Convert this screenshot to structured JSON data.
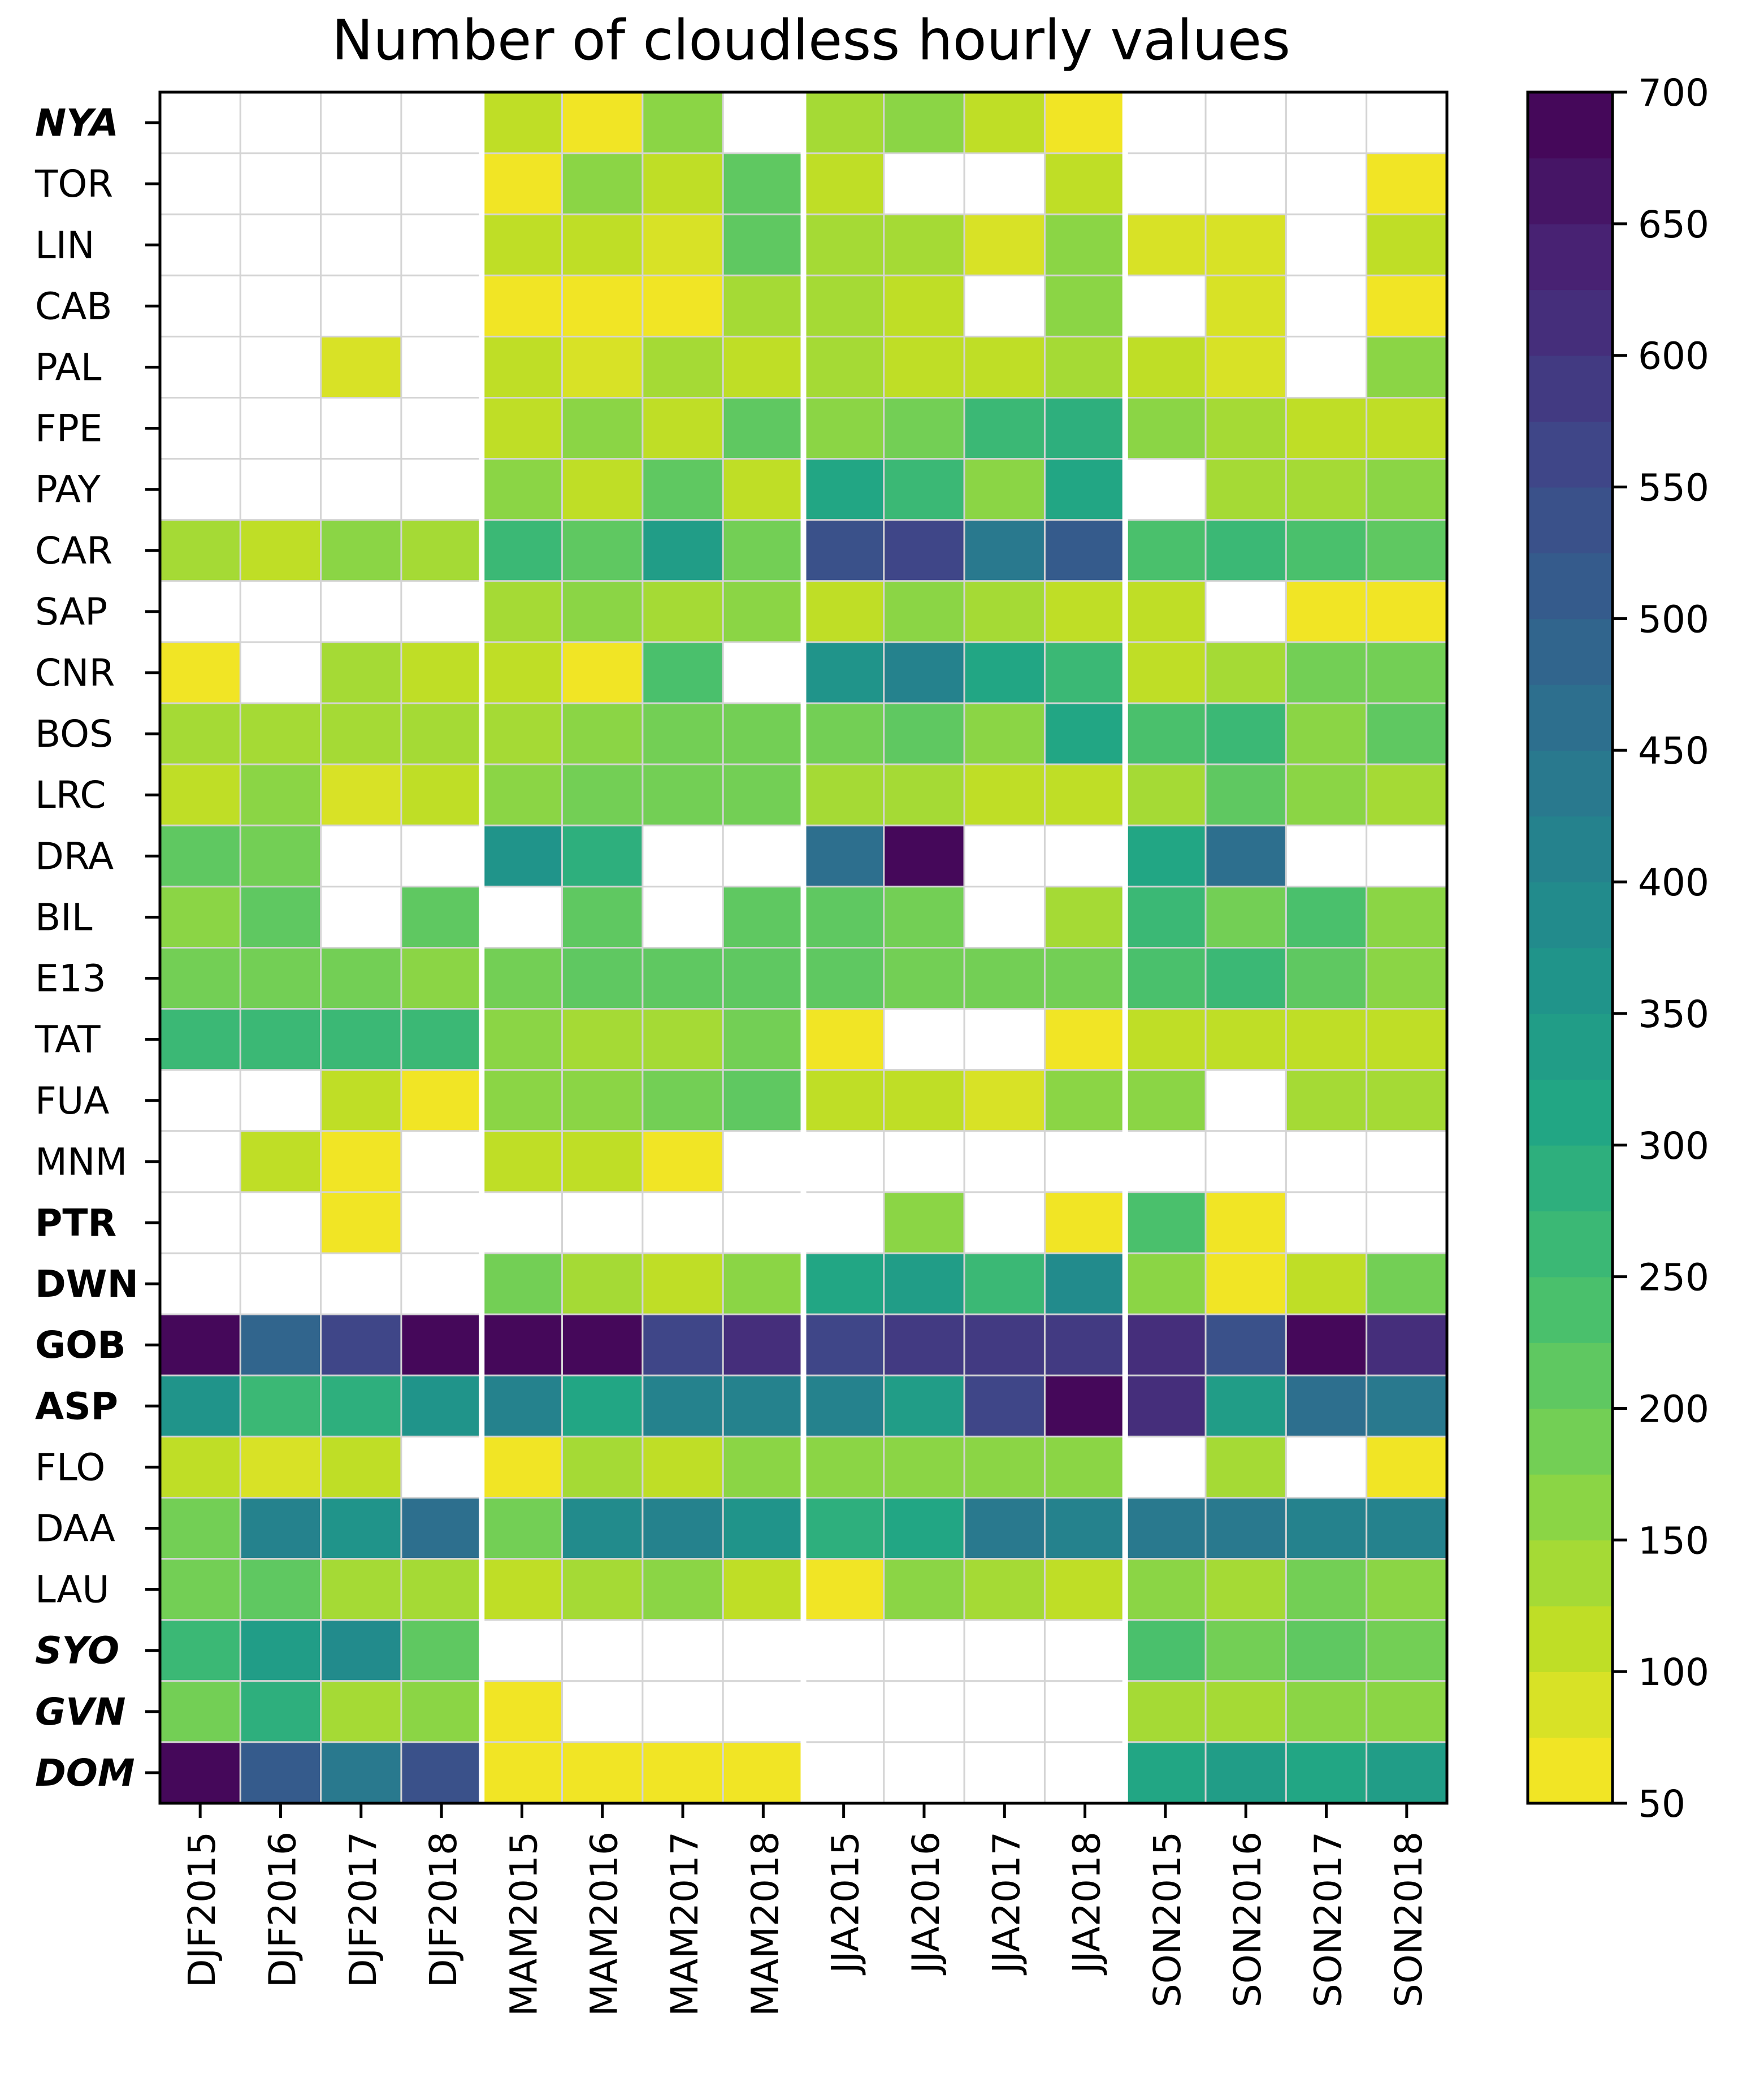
{
  "chart_data": {
    "type": "heatmap",
    "title": "Number of cloudless hourly values",
    "xlabel": "",
    "ylabel": "",
    "x_categories": [
      "DJF2015",
      "DJF2016",
      "DJF2017",
      "DJF2018",
      "MAM2015",
      "MAM2016",
      "MAM2017",
      "MAM2018",
      "JJA2015",
      "JJA2016",
      "JJA2017",
      "JJA2018",
      "SON2015",
      "SON2016",
      "SON2017",
      "SON2018"
    ],
    "y_categories": [
      {
        "label": "NYA",
        "style": "italic-bold",
        "color": "#2a9d8a"
      },
      {
        "label": "TOR",
        "style": "normal",
        "color": "#000000"
      },
      {
        "label": "LIN",
        "style": "normal",
        "color": "#000000"
      },
      {
        "label": "CAB",
        "style": "normal",
        "color": "#000000"
      },
      {
        "label": "PAL",
        "style": "normal",
        "color": "#000000"
      },
      {
        "label": "FPE",
        "style": "normal",
        "color": "#000000"
      },
      {
        "label": "PAY",
        "style": "normal",
        "color": "#000000"
      },
      {
        "label": "CAR",
        "style": "normal",
        "color": "#000000"
      },
      {
        "label": "SAP",
        "style": "normal",
        "color": "#000000"
      },
      {
        "label": "CNR",
        "style": "normal",
        "color": "#000000"
      },
      {
        "label": "BOS",
        "style": "normal",
        "color": "#000000"
      },
      {
        "label": "LRC",
        "style": "normal",
        "color": "#000000"
      },
      {
        "label": "DRA",
        "style": "normal",
        "color": "#000000"
      },
      {
        "label": "BIL",
        "style": "normal",
        "color": "#000000"
      },
      {
        "label": "E13",
        "style": "normal",
        "color": "#000000"
      },
      {
        "label": "TAT",
        "style": "normal",
        "color": "#000000"
      },
      {
        "label": "FUA",
        "style": "normal",
        "color": "#000000"
      },
      {
        "label": "MNM",
        "style": "normal",
        "color": "#000000"
      },
      {
        "label": "PTR",
        "style": "bold",
        "color": "#3d5a99"
      },
      {
        "label": "DWN",
        "style": "bold",
        "color": "#3d5a99"
      },
      {
        "label": "GOB",
        "style": "bold",
        "color": "#3d5a99"
      },
      {
        "label": "ASP",
        "style": "bold",
        "color": "#3d5a99"
      },
      {
        "label": "FLO",
        "style": "normal",
        "color": "#000000"
      },
      {
        "label": "DAA",
        "style": "normal",
        "color": "#000000"
      },
      {
        "label": "LAU",
        "style": "normal",
        "color": "#000000"
      },
      {
        "label": "SYO",
        "style": "italic-bold",
        "color": "#2a9d8a"
      },
      {
        "label": "GVN",
        "style": "italic-bold",
        "color": "#2a9d8a"
      },
      {
        "label": "DOM",
        "style": "italic-bold",
        "color": "#2a9d8a"
      }
    ],
    "values": [
      [
        null,
        null,
        null,
        null,
        110,
        70,
        155,
        null,
        140,
        150,
        105,
        65,
        null,
        null,
        null,
        null
      ],
      [
        null,
        null,
        null,
        null,
        70,
        170,
        110,
        220,
        120,
        null,
        null,
        110,
        null,
        null,
        null,
        70
      ],
      [
        null,
        null,
        null,
        null,
        110,
        110,
        80,
        200,
        140,
        130,
        75,
        170,
        75,
        80,
        null,
        110
      ],
      [
        null,
        null,
        null,
        null,
        70,
        70,
        70,
        125,
        125,
        110,
        null,
        170,
        null,
        80,
        null,
        70
      ],
      [
        null,
        null,
        80,
        null,
        110,
        80,
        125,
        110,
        125,
        120,
        110,
        140,
        100,
        80,
        null,
        150
      ],
      [
        null,
        null,
        null,
        null,
        110,
        150,
        110,
        210,
        170,
        190,
        260,
        290,
        150,
        130,
        110,
        100
      ],
      [
        null,
        null,
        null,
        null,
        150,
        100,
        220,
        100,
        320,
        250,
        170,
        320,
        null,
        140,
        140,
        170
      ],
      [
        140,
        100,
        160,
        130,
        260,
        210,
        330,
        190,
        540,
        550,
        430,
        510,
        240,
        260,
        240,
        210
      ],
      [
        null,
        null,
        null,
        null,
        140,
        150,
        130,
        150,
        120,
        150,
        130,
        110,
        100,
        null,
        70,
        70
      ],
      [
        70,
        null,
        130,
        110,
        120,
        70,
        240,
        null,
        360,
        400,
        300,
        260,
        120,
        140,
        180,
        180
      ],
      [
        130,
        140,
        130,
        130,
        140,
        150,
        180,
        180,
        180,
        220,
        170,
        300,
        240,
        250,
        150,
        210
      ],
      [
        100,
        160,
        95,
        120,
        150,
        180,
        180,
        180,
        140,
        140,
        120,
        120,
        140,
        200,
        160,
        140
      ],
      [
        210,
        190,
        null,
        null,
        370,
        290,
        null,
        null,
        450,
        700,
        null,
        null,
        320,
        450,
        null,
        null
      ],
      [
        160,
        210,
        null,
        210,
        null,
        220,
        null,
        210,
        200,
        190,
        null,
        140,
        270,
        190,
        240,
        160
      ],
      [
        190,
        180,
        180,
        160,
        180,
        210,
        210,
        210,
        200,
        190,
        180,
        190,
        240,
        260,
        200,
        160
      ],
      [
        250,
        250,
        270,
        260,
        150,
        140,
        130,
        180,
        60,
        null,
        null,
        60,
        100,
        100,
        120,
        110
      ],
      [
        null,
        null,
        100,
        70,
        150,
        150,
        180,
        210,
        120,
        100,
        75,
        170,
        160,
        null,
        130,
        130
      ],
      [
        null,
        110,
        70,
        null,
        100,
        100,
        70,
        null,
        null,
        null,
        null,
        null,
        null,
        null,
        null,
        null
      ],
      [
        null,
        null,
        70,
        null,
        null,
        null,
        null,
        null,
        null,
        160,
        null,
        70,
        240,
        70,
        null,
        null
      ],
      [
        null,
        null,
        null,
        null,
        180,
        130,
        110,
        150,
        320,
        330,
        270,
        390,
        170,
        70,
        100,
        180
      ],
      [
        700,
        480,
        560,
        700,
        700,
        700,
        570,
        620,
        560,
        590,
        590,
        590,
        600,
        540,
        700,
        600
      ],
      [
        350,
        270,
        280,
        350,
        400,
        300,
        420,
        420,
        420,
        340,
        560,
        700,
        600,
        330,
        470,
        440
      ],
      [
        100,
        75,
        110,
        null,
        70,
        130,
        110,
        160,
        150,
        160,
        170,
        170,
        null,
        130,
        null,
        70
      ],
      [
        180,
        400,
        350,
        460,
        190,
        390,
        410,
        370,
        280,
        310,
        440,
        400,
        440,
        440,
        410,
        410
      ],
      [
        190,
        210,
        130,
        140,
        100,
        130,
        150,
        110,
        60,
        150,
        130,
        100,
        160,
        140,
        180,
        170
      ],
      [
        260,
        340,
        390,
        210,
        null,
        null,
        null,
        null,
        null,
        null,
        null,
        null,
        240,
        180,
        200,
        180
      ],
      [
        190,
        280,
        130,
        160,
        70,
        null,
        null,
        null,
        null,
        null,
        null,
        null,
        140,
        140,
        150,
        150
      ],
      [
        700,
        520,
        440,
        530,
        70,
        70,
        70,
        70,
        null,
        null,
        null,
        null,
        310,
        330,
        320,
        330
      ]
    ],
    "colorbar": {
      "colormap": "viridis_r",
      "vmin": 50,
      "vmax": 700,
      "levels": 26,
      "ticks": [
        "50",
        "100",
        "150",
        "200",
        "250",
        "300",
        "350",
        "400",
        "450",
        "500",
        "550",
        "600",
        "650",
        "700"
      ]
    },
    "missing_color": "#ffffff",
    "grid": true
  }
}
